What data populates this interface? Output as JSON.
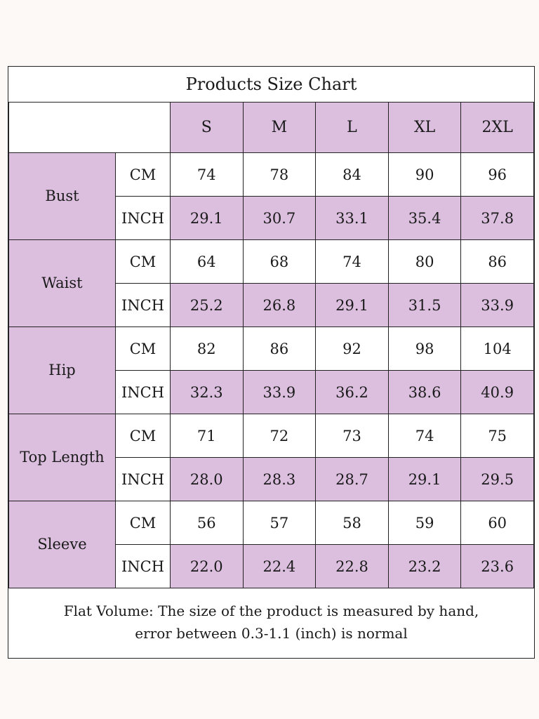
{
  "chart_data": {
    "type": "table",
    "title": "Products Size Chart",
    "sizes": [
      "S",
      "M",
      "L",
      "XL",
      "2XL"
    ],
    "rows": [
      {
        "measure": "Bust",
        "cm": [
          "74",
          "78",
          "84",
          "90",
          "96"
        ],
        "inch": [
          "29.1",
          "30.7",
          "33.1",
          "35.4",
          "37.8"
        ]
      },
      {
        "measure": "Waist",
        "cm": [
          "64",
          "68",
          "74",
          "80",
          "86"
        ],
        "inch": [
          "25.2",
          "26.8",
          "29.1",
          "31.5",
          "33.9"
        ]
      },
      {
        "measure": "Hip",
        "cm": [
          "82",
          "86",
          "92",
          "98",
          "104"
        ],
        "inch": [
          "32.3",
          "33.9",
          "36.2",
          "38.6",
          "40.9"
        ]
      },
      {
        "measure": "Top Length",
        "cm": [
          "71",
          "72",
          "73",
          "74",
          "75"
        ],
        "inch": [
          "28.0",
          "28.3",
          "28.7",
          "29.1",
          "29.5"
        ]
      },
      {
        "measure": "Sleeve",
        "cm": [
          "56",
          "57",
          "58",
          "59",
          "60"
        ],
        "inch": [
          "22.0",
          "22.4",
          "22.8",
          "23.2",
          "23.6"
        ]
      }
    ],
    "units": {
      "cm": "CM",
      "inch": "INCH"
    },
    "note_line1": "Flat Volume: The size of the product is measured by hand,",
    "note_line2": "error between 0.3-1.1 (inch) is normal"
  },
  "colors": {
    "accent": "#dcbfdf",
    "background": "#ffffff",
    "border": "#222222"
  }
}
